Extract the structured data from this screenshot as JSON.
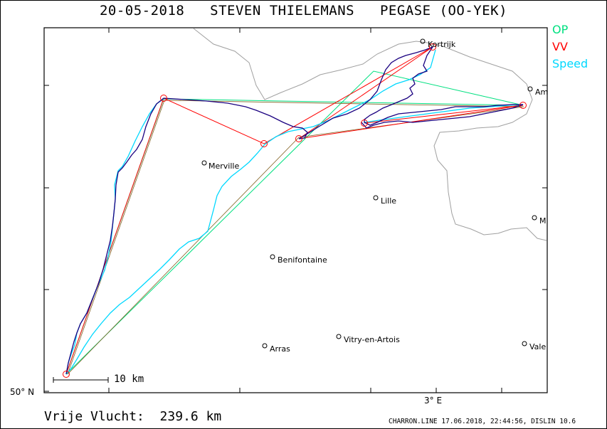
{
  "title": "20-05-2018   STEVEN THIELEMANS   PEGASE (OO-YEK)",
  "legend": {
    "op": "OP",
    "vv": "VV",
    "speed": "Speed"
  },
  "colors": {
    "op": "#00e080",
    "vv": "#ff0000",
    "speed": "#00d8ff",
    "track": "#1a0080",
    "border": "#a0a0a0"
  },
  "axes": {
    "lat_label": "50° N",
    "lon_label": "3° E"
  },
  "scale": {
    "label": "10 km"
  },
  "towns": [
    {
      "name": "Kortrijk"
    },
    {
      "name": "Am"
    },
    {
      "name": "Merville"
    },
    {
      "name": "Lille"
    },
    {
      "name": "M"
    },
    {
      "name": "Benifontaine"
    },
    {
      "name": "Vitry-en-Artois"
    },
    {
      "name": "Arras"
    },
    {
      "name": "Vale"
    }
  ],
  "distance": "Vrije Vlucht:  239.6 km",
  "footer": "CHARRON.LINE 17.06.2018, 22:44:56, DISLIN 10.6"
}
